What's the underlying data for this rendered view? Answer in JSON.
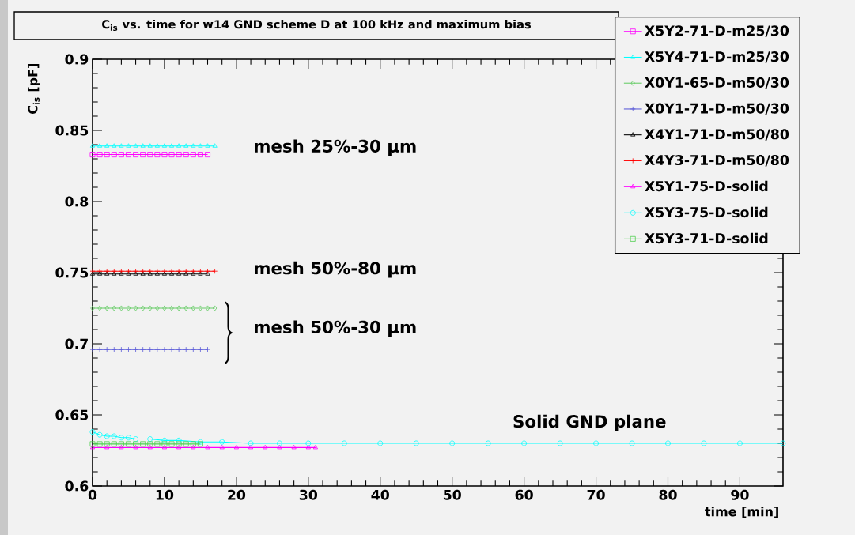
{
  "chart_data": {
    "type": "line",
    "title": "C$_{is}$ vs. time for w14 GND scheme D at 100 kHz and maximum bias",
    "xlabel": "time [min]",
    "ylabel": "C$_{is}$ [pF]",
    "xlim": [
      0,
      96
    ],
    "ylim": [
      0.6,
      0.9
    ],
    "xticks": [
      0,
      10,
      20,
      30,
      40,
      50,
      60,
      70,
      80,
      90
    ],
    "yticks": [
      {
        "value": 0.6,
        "label": "0.6"
      },
      0.65,
      {
        "value": 0.7,
        "label": "0.7"
      },
      0.75,
      {
        "value": 0.8,
        "label": "0.8"
      },
      0.85,
      {
        "value": 0.9,
        "label": "0.9"
      }
    ],
    "legend": "top right",
    "grid": false,
    "series": [
      {
        "name": "X5Y2-71-D-m25/30",
        "color": "#ff00ff",
        "marker": "square",
        "x": [
          0,
          1,
          2,
          3,
          4,
          5,
          6,
          7,
          8,
          9,
          10,
          11,
          12,
          13,
          14,
          15,
          16
        ],
        "values": [
          0.833,
          0.833,
          0.833,
          0.833,
          0.833,
          0.833,
          0.833,
          0.833,
          0.833,
          0.833,
          0.833,
          0.833,
          0.833,
          0.833,
          0.833,
          0.833,
          0.833
        ]
      },
      {
        "name": "X5Y4-71-D-m25/30",
        "color": "#00ffff",
        "marker": "triangle",
        "x": [
          0,
          1,
          2,
          3,
          4,
          5,
          6,
          7,
          8,
          9,
          10,
          11,
          12,
          13,
          14,
          15,
          16,
          17
        ],
        "values": [
          0.839,
          0.839,
          0.839,
          0.839,
          0.839,
          0.839,
          0.839,
          0.839,
          0.839,
          0.839,
          0.839,
          0.839,
          0.839,
          0.839,
          0.839,
          0.839,
          0.839,
          0.839
        ]
      },
      {
        "name": "X0Y1-65-D-m50/30",
        "color": "#66cc66",
        "marker": "diamond",
        "x": [
          0,
          1,
          2,
          3,
          4,
          5,
          6,
          7,
          8,
          9,
          10,
          11,
          12,
          13,
          14,
          15,
          16,
          17
        ],
        "values": [
          0.725,
          0.725,
          0.725,
          0.725,
          0.725,
          0.725,
          0.725,
          0.725,
          0.725,
          0.725,
          0.725,
          0.725,
          0.725,
          0.725,
          0.725,
          0.725,
          0.725,
          0.725
        ]
      },
      {
        "name": "X0Y1-71-D-m50/30",
        "color": "#5a5ad8",
        "marker": "cross",
        "x": [
          0,
          1,
          2,
          3,
          4,
          5,
          6,
          7,
          8,
          9,
          10,
          11,
          12,
          13,
          14,
          15,
          16
        ],
        "values": [
          0.696,
          0.696,
          0.696,
          0.696,
          0.696,
          0.696,
          0.696,
          0.696,
          0.696,
          0.696,
          0.696,
          0.696,
          0.696,
          0.696,
          0.696,
          0.696,
          0.696
        ]
      },
      {
        "name": "X4Y1-71-D-m50/80",
        "color": "#000000",
        "marker": "triangle",
        "x": [
          0,
          1,
          2,
          3,
          4,
          5,
          6,
          7,
          8,
          9,
          10,
          11,
          12,
          13,
          14,
          15,
          16
        ],
        "values": [
          0.749,
          0.749,
          0.749,
          0.749,
          0.749,
          0.749,
          0.749,
          0.749,
          0.749,
          0.749,
          0.749,
          0.749,
          0.749,
          0.749,
          0.749,
          0.749,
          0.749
        ]
      },
      {
        "name": "X4Y3-71-D-m50/80",
        "color": "#ff0000",
        "marker": "cross",
        "x": [
          0,
          1,
          2,
          3,
          4,
          5,
          6,
          7,
          8,
          9,
          10,
          11,
          12,
          13,
          14,
          15,
          16,
          17
        ],
        "values": [
          0.751,
          0.751,
          0.751,
          0.751,
          0.751,
          0.751,
          0.751,
          0.751,
          0.751,
          0.751,
          0.751,
          0.751,
          0.751,
          0.751,
          0.751,
          0.751,
          0.751,
          0.751
        ]
      },
      {
        "name": "X5Y1-75-D-solid",
        "color": "#ff00ff",
        "marker": "triangle",
        "x": [
          0,
          2,
          4,
          6,
          8,
          10,
          12,
          14,
          16,
          18,
          20,
          22,
          24,
          26,
          28,
          30,
          31
        ],
        "values": [
          0.627,
          0.627,
          0.627,
          0.627,
          0.627,
          0.627,
          0.627,
          0.627,
          0.627,
          0.627,
          0.627,
          0.627,
          0.627,
          0.627,
          0.627,
          0.627,
          0.627
        ]
      },
      {
        "name": "X5Y3-75-D-solid",
        "color": "#00ffff",
        "marker": "circle",
        "x": [
          0,
          1,
          2,
          3,
          4,
          5,
          6,
          8,
          10,
          12,
          15,
          18,
          22,
          26,
          30,
          35,
          40,
          45,
          50,
          55,
          60,
          65,
          70,
          75,
          80,
          85,
          90,
          96
        ],
        "values": [
          0.638,
          0.636,
          0.635,
          0.635,
          0.634,
          0.634,
          0.633,
          0.633,
          0.632,
          0.632,
          0.631,
          0.631,
          0.63,
          0.63,
          0.63,
          0.63,
          0.63,
          0.63,
          0.63,
          0.63,
          0.63,
          0.63,
          0.63,
          0.63,
          0.63,
          0.63,
          0.63,
          0.63
        ]
      },
      {
        "name": "X5Y3-71-D-solid",
        "color": "#4fcf4f",
        "marker": "square",
        "x": [
          0,
          1,
          2,
          3,
          4,
          5,
          6,
          7,
          8,
          9,
          10,
          11,
          12,
          13,
          14,
          15
        ],
        "values": [
          0.6295,
          0.6295,
          0.6295,
          0.6295,
          0.6295,
          0.6295,
          0.6295,
          0.6295,
          0.6295,
          0.6295,
          0.6295,
          0.6295,
          0.6295,
          0.6295,
          0.6295,
          0.6295
        ]
      }
    ],
    "annotations": [
      "mesh 25%-30 µm",
      "mesh 50%-80 µm",
      "mesh 50%-30 µm",
      "Solid GND plane"
    ]
  }
}
